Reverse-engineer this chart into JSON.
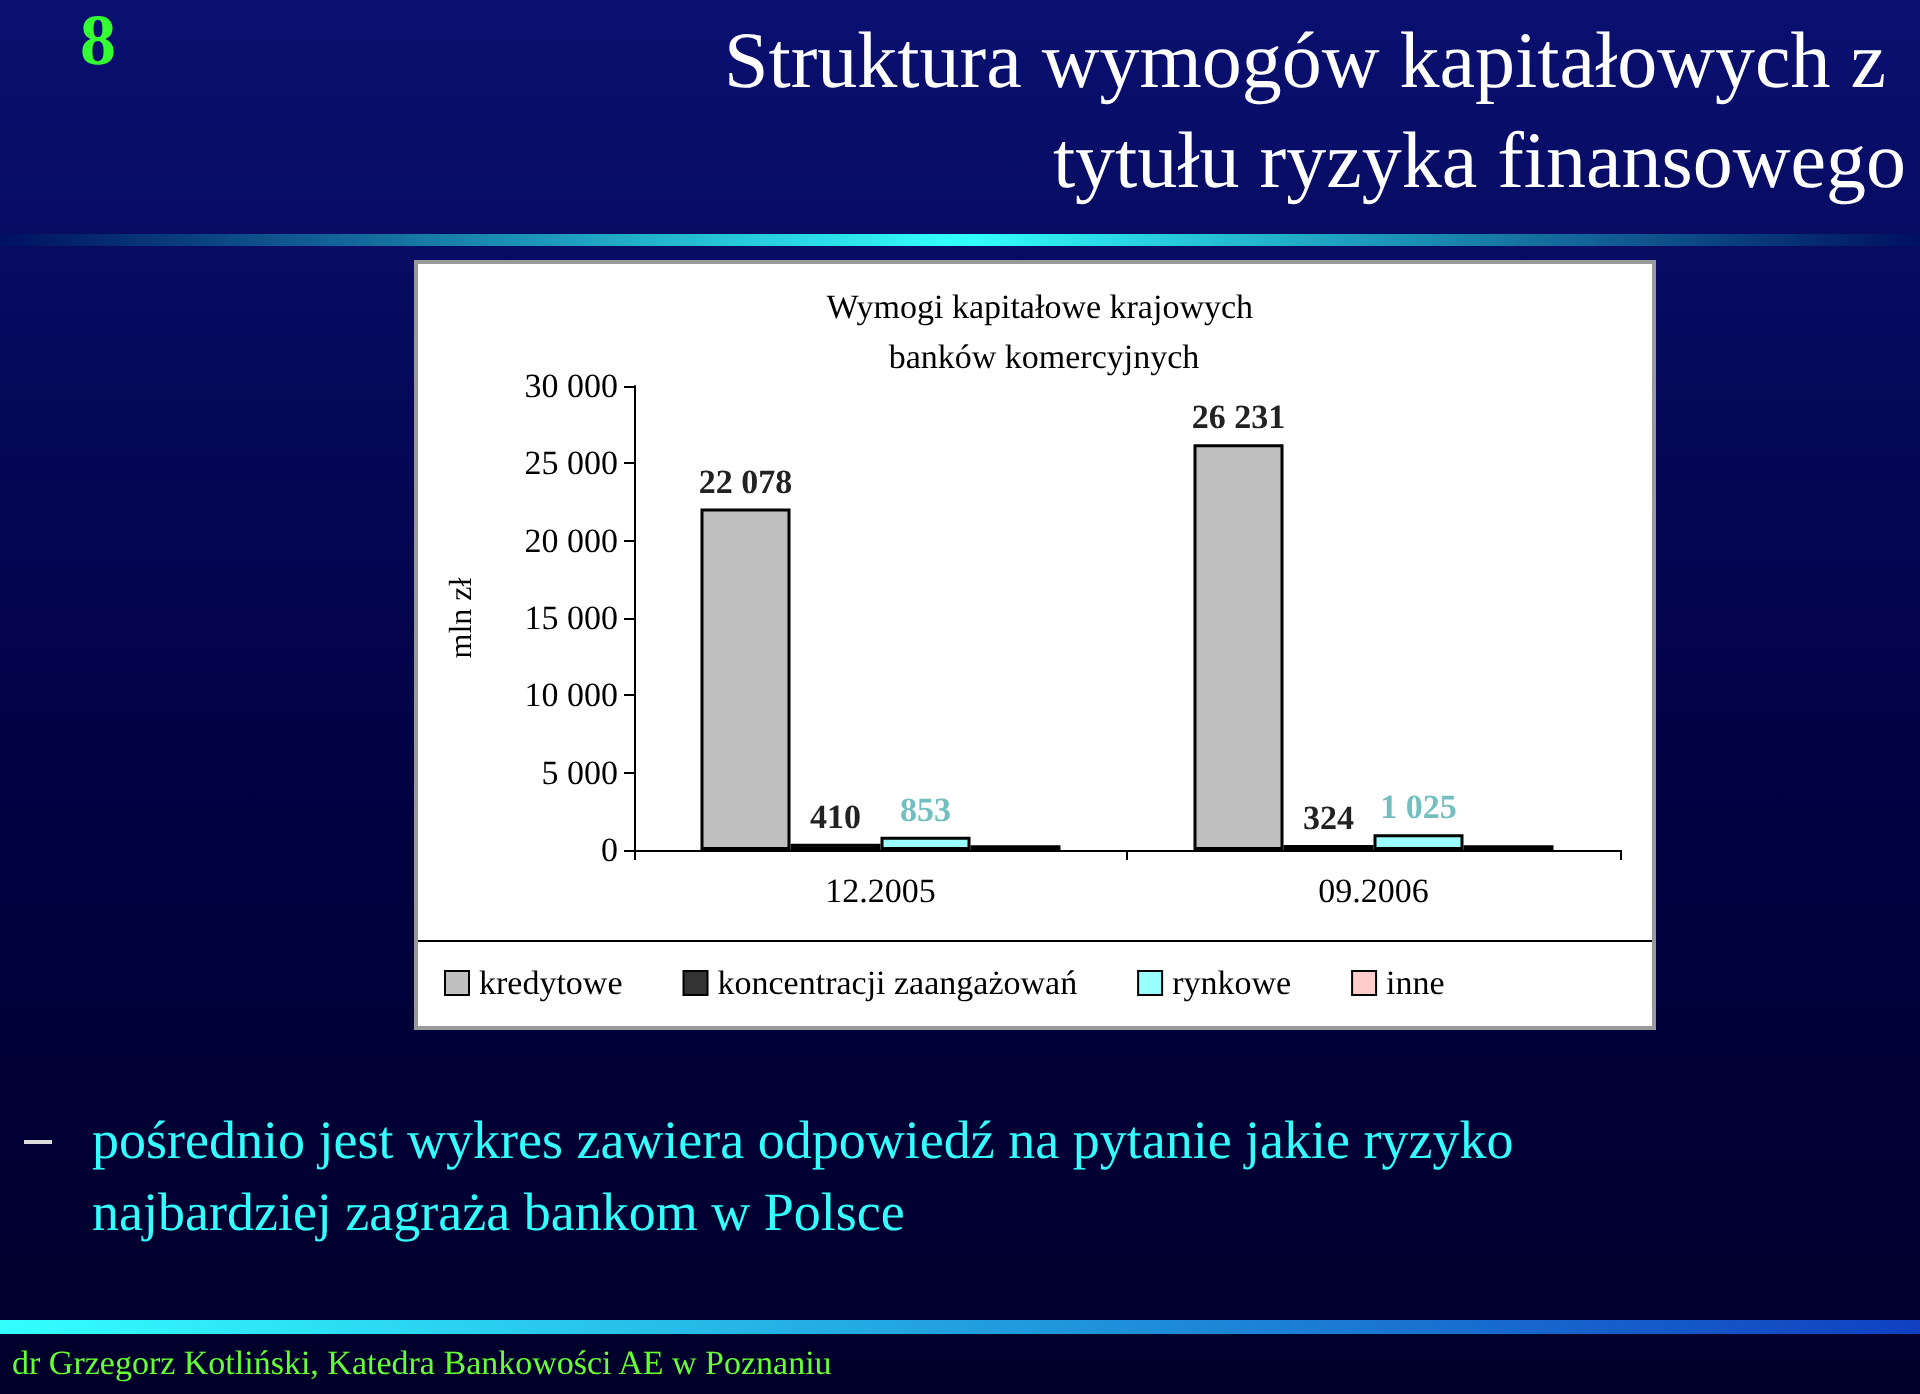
{
  "chart_data": {
    "type": "bar",
    "title": "Struktura wymogów kapitałowych z tytułu ryzyka finansowego",
    "subtitle": "Wymogi kapitałowe krajowych banków komercyjnych",
    "ylabel": "mln zł",
    "categories": [
      "12.2005",
      "09.2006"
    ],
    "series": [
      {
        "name": "kredytowe",
        "color": "#c0c0c0",
        "values": [
          22078,
          26231
        ],
        "value_labels": [
          "22 078",
          "26 231"
        ]
      },
      {
        "name": "koncentracji zaangażowań",
        "color": "#333333",
        "values": [
          410,
          324
        ],
        "value_labels": [
          "410",
          "324"
        ]
      },
      {
        "name": "rynkowe",
        "color": "#99ffff",
        "values": [
          853,
          1025
        ],
        "value_labels": [
          "853",
          "1 025"
        ]
      },
      {
        "name": "inne",
        "color": "#ffcccc",
        "values": [
          300,
          300
        ],
        "value_labels": [
          null,
          null
        ]
      }
    ],
    "ylim": [
      0,
      30000
    ],
    "yticks": [
      {
        "value": 0,
        "label": "0"
      },
      {
        "value": 5000,
        "label": "5 000"
      },
      {
        "value": 10000,
        "label": "10 000"
      },
      {
        "value": 15000,
        "label": "15 000"
      },
      {
        "value": 20000,
        "label": "20 000"
      },
      {
        "value": 25000,
        "label": "25 000"
      },
      {
        "value": 30000,
        "label": "30 000"
      }
    ],
    "legend": "bottom",
    "annotations": [
      "8",
      "pośrednio jest wykres zawiera odpowiedź na pytanie jakie ryzyko najbardziej zagraża bankom w Polsce",
      "dr Grzegorz Kotliński, Katedra Bankowości AE w Poznaniu"
    ]
  }
}
